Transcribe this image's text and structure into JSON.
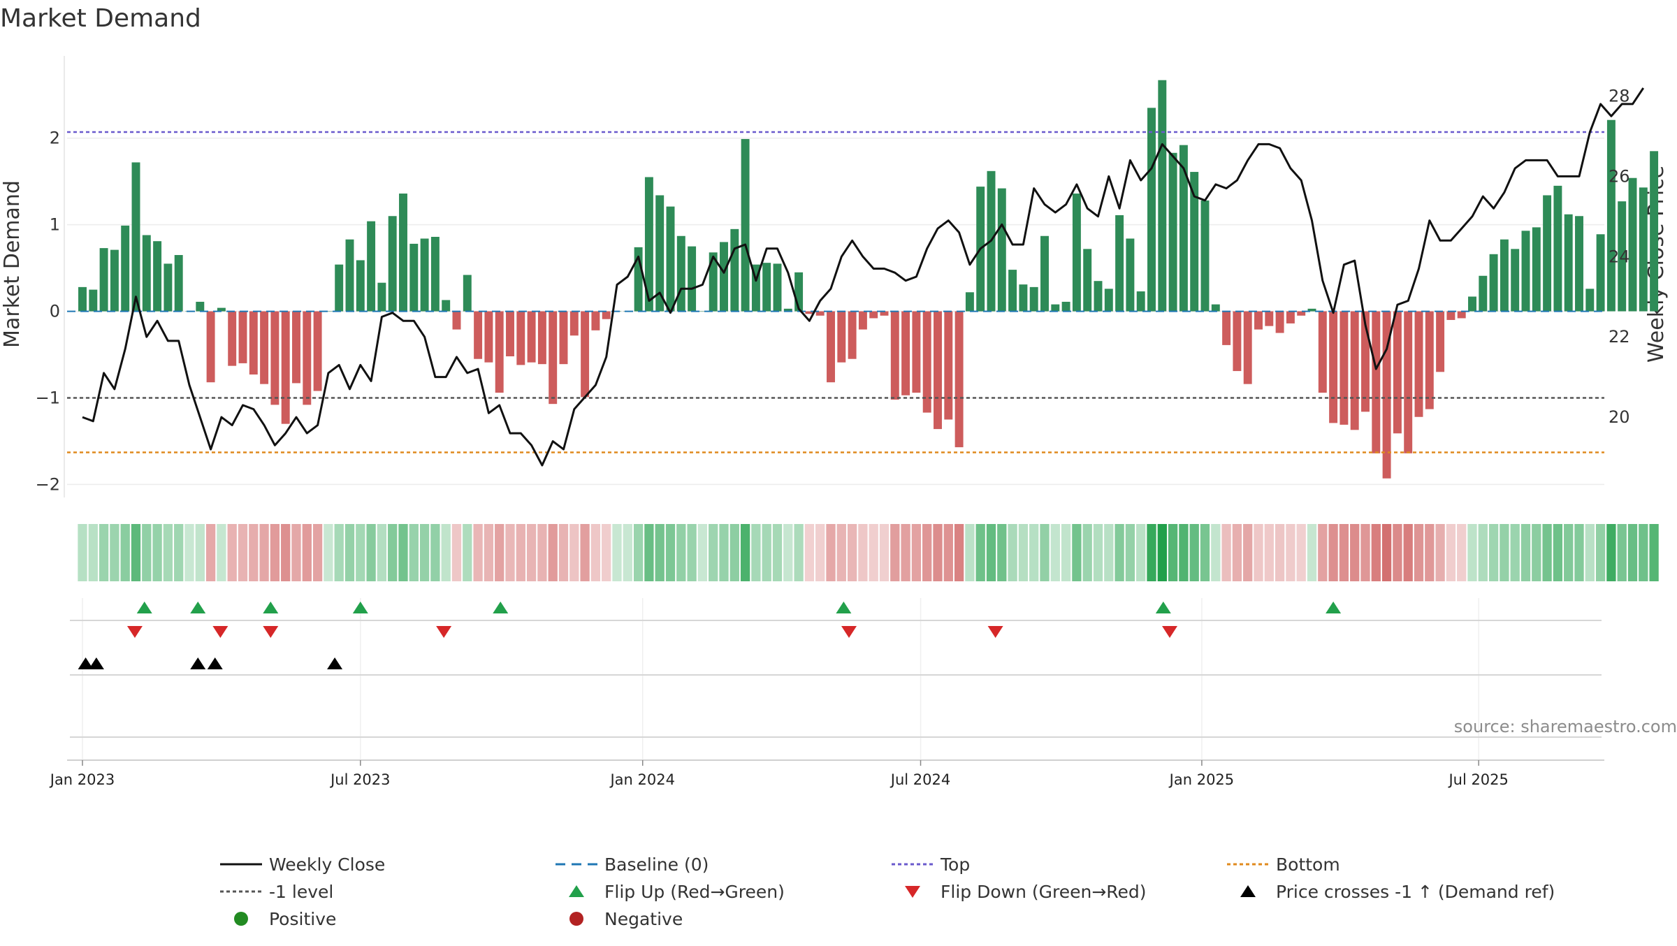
{
  "chart_data": {
    "type": "bar",
    "title": "Market Demand",
    "ylabel": "Market Demand",
    "y2label": "Weekly Close Price",
    "ylim": [
      -2.15,
      2.95
    ],
    "y2lim": [
      18.0,
      29.0
    ],
    "yticks": [
      -2,
      -1,
      0,
      1,
      2
    ],
    "y2ticks": [
      20,
      22,
      24,
      26,
      28
    ],
    "xticks": [
      {
        "label": "Jan 2023",
        "week": 0
      },
      {
        "label": "Jul 2023",
        "week": 26
      },
      {
        "label": "Jan 2024",
        "week": 52.4
      },
      {
        "label": "Jul 2024",
        "week": 78.4
      },
      {
        "label": "Jan 2025",
        "week": 104.7
      },
      {
        "label": "Jul 2025",
        "week": 130.6
      }
    ],
    "grid": true,
    "reference_lines": {
      "baseline": 0,
      "top": 2.07,
      "level": -1,
      "bottom": -1.63
    },
    "colors": {
      "positive": "#2e8b57",
      "negative": "#cd5c5c",
      "close": "#111111",
      "baseline": "#1f77b4",
      "top": "#6a5acd",
      "level": "#555555",
      "bottom": "#e08a1e",
      "flip_up": "#22a04b",
      "flip_down": "#d62728",
      "cross": "#000000"
    },
    "demand": [
      0.28,
      0.25,
      0.73,
      0.71,
      0.99,
      1.72,
      0.88,
      0.81,
      0.55,
      0.65,
      0.0,
      0.11,
      -0.82,
      0.04,
      -0.63,
      -0.6,
      -0.73,
      -0.84,
      -1.08,
      -1.3,
      -0.83,
      -1.08,
      -0.92,
      0.0,
      0.54,
      0.83,
      0.59,
      1.04,
      0.33,
      1.1,
      1.36,
      0.78,
      0.84,
      0.86,
      0.13,
      -0.21,
      0.42,
      -0.55,
      -0.59,
      -0.94,
      -0.52,
      -0.62,
      -0.59,
      -0.61,
      -1.07,
      -0.61,
      -0.28,
      -0.99,
      -0.22,
      -0.09,
      0.0,
      0.0,
      0.74,
      1.55,
      1.34,
      1.21,
      0.87,
      0.75,
      0.0,
      0.68,
      0.8,
      0.95,
      1.99,
      0.54,
      0.56,
      0.55,
      0.03,
      0.45,
      -0.03,
      -0.05,
      -0.82,
      -0.59,
      -0.55,
      -0.21,
      -0.08,
      -0.05,
      -1.02,
      -0.97,
      -0.94,
      -1.17,
      -1.36,
      -1.25,
      -1.57,
      0.22,
      1.44,
      1.62,
      1.42,
      0.48,
      0.31,
      0.28,
      0.87,
      0.08,
      0.11,
      1.36,
      0.72,
      0.35,
      0.26,
      1.11,
      0.84,
      0.23,
      2.35,
      2.67,
      1.83,
      1.92,
      1.61,
      1.28,
      0.08,
      -0.39,
      -0.69,
      -0.84,
      -0.21,
      -0.17,
      -0.25,
      -0.14,
      -0.05,
      0.03,
      -0.94,
      -1.29,
      -1.31,
      -1.37,
      -1.16,
      -1.64,
      -1.93,
      -1.41,
      -1.64,
      -1.22,
      -1.13,
      -0.7,
      -0.1,
      -0.08,
      0.17,
      0.41,
      0.66,
      0.83,
      0.72,
      0.93,
      0.97,
      1.34,
      1.45,
      1.12,
      1.1,
      0.26,
      0.89,
      2.21,
      1.27,
      1.54,
      1.43,
      1.85
    ],
    "close": [
      20.0,
      19.9,
      21.1,
      20.7,
      21.7,
      23.0,
      22.0,
      22.4,
      21.9,
      21.9,
      20.8,
      20.0,
      19.2,
      20.0,
      19.8,
      20.3,
      20.2,
      19.8,
      19.3,
      19.6,
      20.0,
      19.6,
      19.8,
      21.1,
      21.3,
      20.7,
      21.3,
      20.9,
      22.5,
      22.6,
      22.4,
      22.4,
      22.0,
      21.0,
      21.0,
      21.5,
      21.1,
      21.2,
      20.1,
      20.3,
      19.6,
      19.6,
      19.3,
      18.8,
      19.4,
      19.2,
      20.2,
      20.5,
      20.8,
      21.5,
      23.3,
      23.5,
      24.0,
      22.9,
      23.1,
      22.6,
      23.2,
      23.2,
      23.3,
      24.0,
      23.6,
      24.2,
      24.3,
      23.4,
      24.2,
      24.2,
      23.6,
      22.7,
      22.4,
      22.9,
      23.2,
      24.0,
      24.4,
      24.0,
      23.7,
      23.7,
      23.6,
      23.4,
      23.5,
      24.2,
      24.7,
      24.9,
      24.6,
      23.8,
      24.2,
      24.4,
      24.8,
      24.3,
      24.3,
      25.7,
      25.3,
      25.1,
      25.3,
      25.8,
      25.2,
      25.0,
      26.0,
      25.2,
      26.4,
      25.9,
      26.2,
      26.8,
      26.5,
      26.2,
      25.5,
      25.4,
      25.8,
      25.7,
      25.9,
      26.4,
      26.8,
      26.8,
      26.7,
      26.2,
      25.9,
      24.9,
      23.4,
      22.6,
      23.8,
      23.9,
      22.3,
      21.2,
      21.7,
      22.8,
      22.9,
      23.7,
      24.9,
      24.4,
      24.4,
      24.7,
      25.0,
      25.5,
      25.2,
      25.6,
      26.2,
      26.4,
      26.4,
      26.4,
      26.0,
      26.0,
      26.0,
      27.1,
      27.8,
      27.5,
      27.8,
      27.8,
      28.2
    ],
    "color_strip_label": "",
    "flip_up_weeks": [
      5.8,
      10.8,
      17.6,
      26.0,
      39.1,
      71.2,
      101.1,
      117.0
    ],
    "flip_down_weeks": [
      4.9,
      12.9,
      17.6,
      33.8,
      71.7,
      85.4,
      101.7
    ],
    "cross_weeks": [
      0.3,
      1.3,
      10.8,
      12.4,
      23.6
    ],
    "source": "source: sharemaestro.com",
    "legend": [
      {
        "label": "Weekly Close",
        "marker": "solid-line",
        "color": "#111111"
      },
      {
        "label": "Baseline (0)",
        "marker": "dashed-line",
        "color": "#1f77b4"
      },
      {
        "label": "Top",
        "marker": "dotted-line",
        "color": "#6a5acd"
      },
      {
        "label": "Bottom",
        "marker": "dotted-line",
        "color": "#e08a1e"
      },
      {
        "label": "-1 level",
        "marker": "dotted-line",
        "color": "#555555"
      },
      {
        "label": "Flip Up (Red→Green)",
        "marker": "triangle-up",
        "color": "#22a04b"
      },
      {
        "label": "Flip Down (Green→Red)",
        "marker": "triangle-down",
        "color": "#d62728"
      },
      {
        "label": "Price crosses -1 ↑ (Demand ref)",
        "marker": "triangle-up",
        "color": "#000000"
      },
      {
        "label": "Positive",
        "marker": "circle",
        "color": "#228b22"
      },
      {
        "label": "Negative",
        "marker": "circle",
        "color": "#b22222"
      }
    ]
  }
}
